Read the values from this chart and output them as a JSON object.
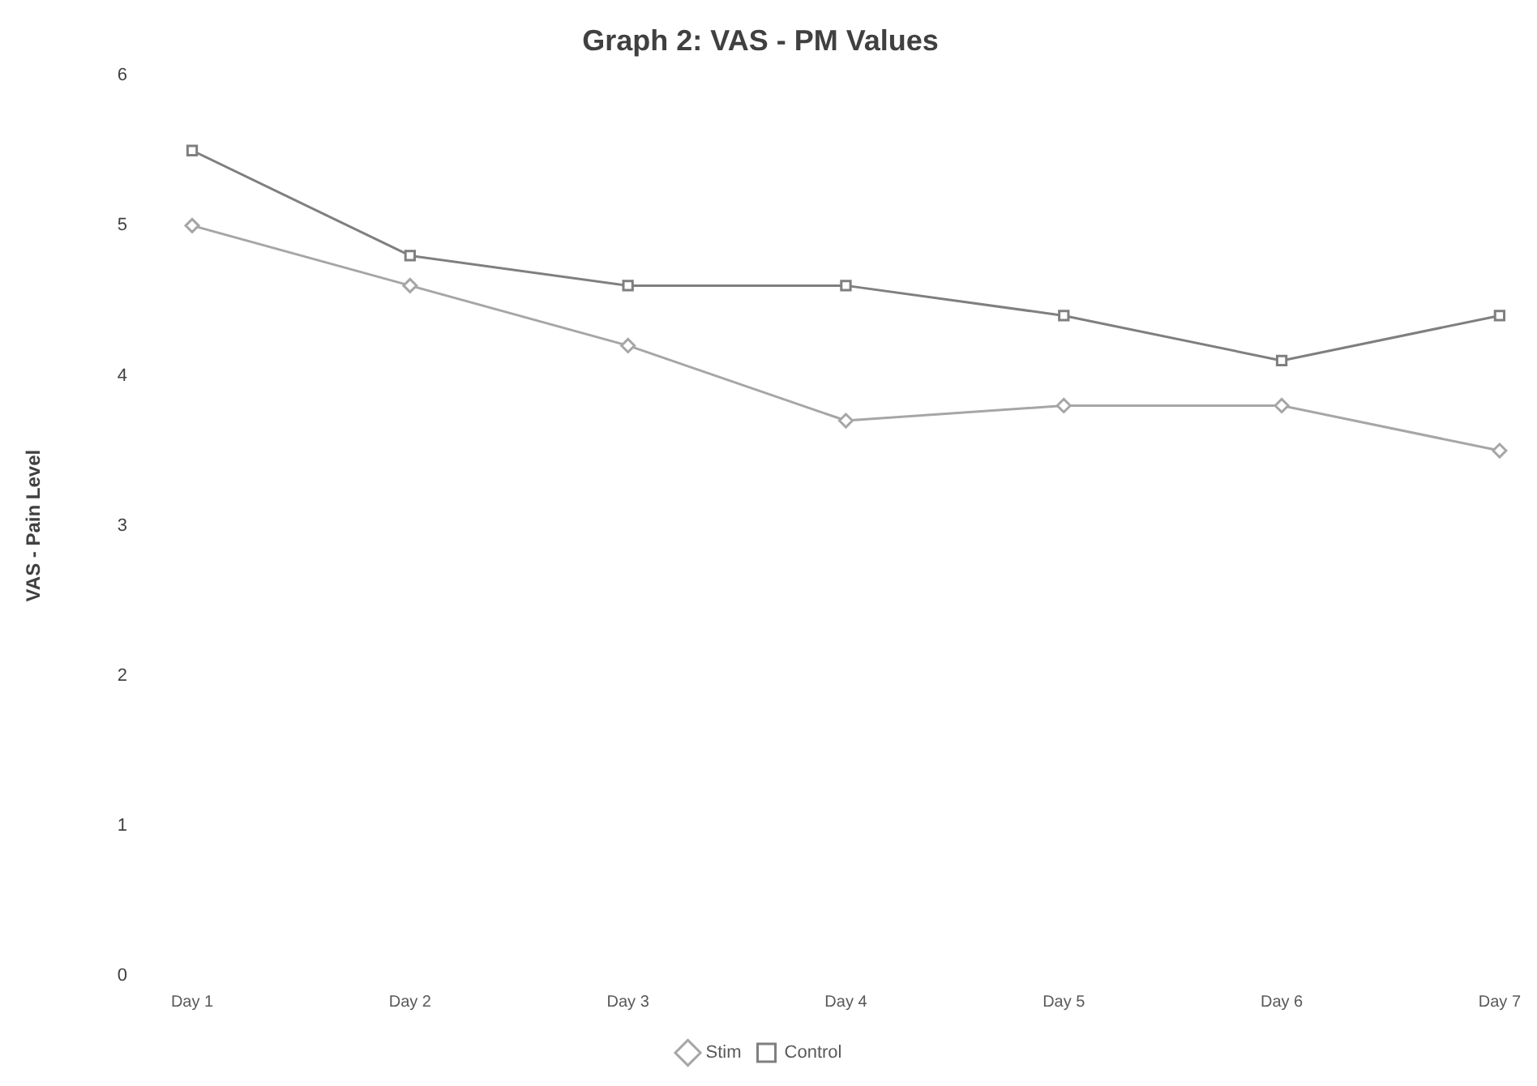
{
  "chart_data": {
    "type": "line",
    "title": "Graph 2: VAS - PM Values",
    "ylabel": "VAS - Pain Level",
    "categories": [
      "Day 1",
      "Day 2",
      "Day 3",
      "Day 4",
      "Day 5",
      "Day 6",
      "Day 7"
    ],
    "series": [
      {
        "name": "Stim",
        "color": "#a6a6a6",
        "marker": "diamond",
        "values": [
          5.0,
          4.6,
          4.2,
          3.7,
          3.8,
          3.8,
          3.5
        ]
      },
      {
        "name": "Control",
        "color": "#7f7f7f",
        "marker": "square",
        "values": [
          5.5,
          4.8,
          4.6,
          4.6,
          4.4,
          4.1,
          4.4
        ]
      }
    ],
    "ylim": [
      0,
      6
    ],
    "yticks": [
      0,
      1,
      2,
      3,
      4,
      5,
      6
    ],
    "grid": false,
    "legend": "bottom",
    "line_style": "solid"
  }
}
